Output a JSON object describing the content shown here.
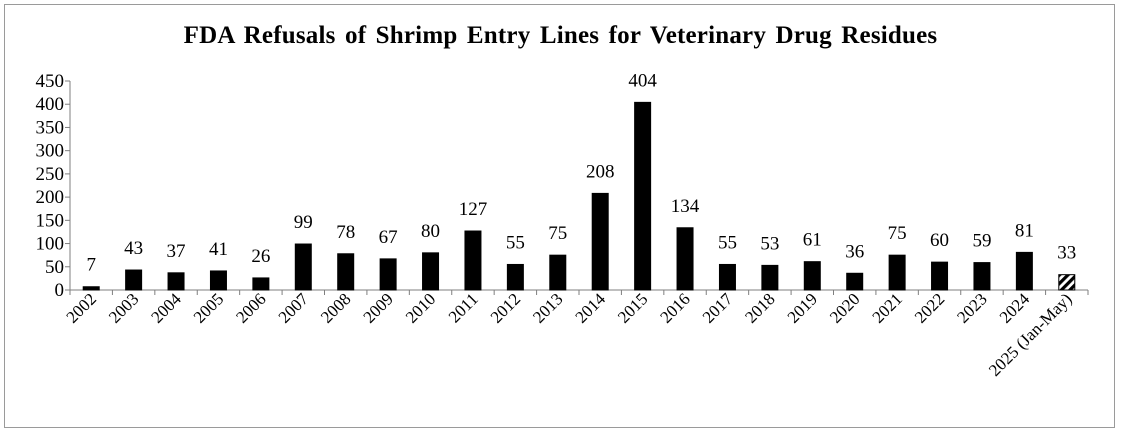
{
  "chart_data": {
    "type": "bar",
    "title": "FDA Refusals of Shrimp  Entry  Lines for Veterinary Drug Residues",
    "xlabel": "",
    "ylabel": "",
    "categories": [
      "2002",
      "2003",
      "2004",
      "2005",
      "2006",
      "2007",
      "2008",
      "2009",
      "2010",
      "2011",
      "2012",
      "2013",
      "2014",
      "2015",
      "2016",
      "2017",
      "2018",
      "2019",
      "2020",
      "2021",
      "2022",
      "2023",
      "2024",
      "2025 (Jan-May)"
    ],
    "values": [
      7,
      43,
      37,
      41,
      26,
      99,
      78,
      67,
      80,
      127,
      55,
      75,
      208,
      404,
      134,
      55,
      53,
      61,
      36,
      75,
      60,
      59,
      81,
      33
    ],
    "ylim": [
      0,
      450
    ],
    "yticks": [
      0,
      50,
      100,
      150,
      200,
      250,
      300,
      350,
      400,
      450
    ],
    "grid": false,
    "legend": "none",
    "bar_color": "#000000",
    "highlight": {
      "index": 23,
      "pattern": "diagonal-hatch"
    }
  }
}
